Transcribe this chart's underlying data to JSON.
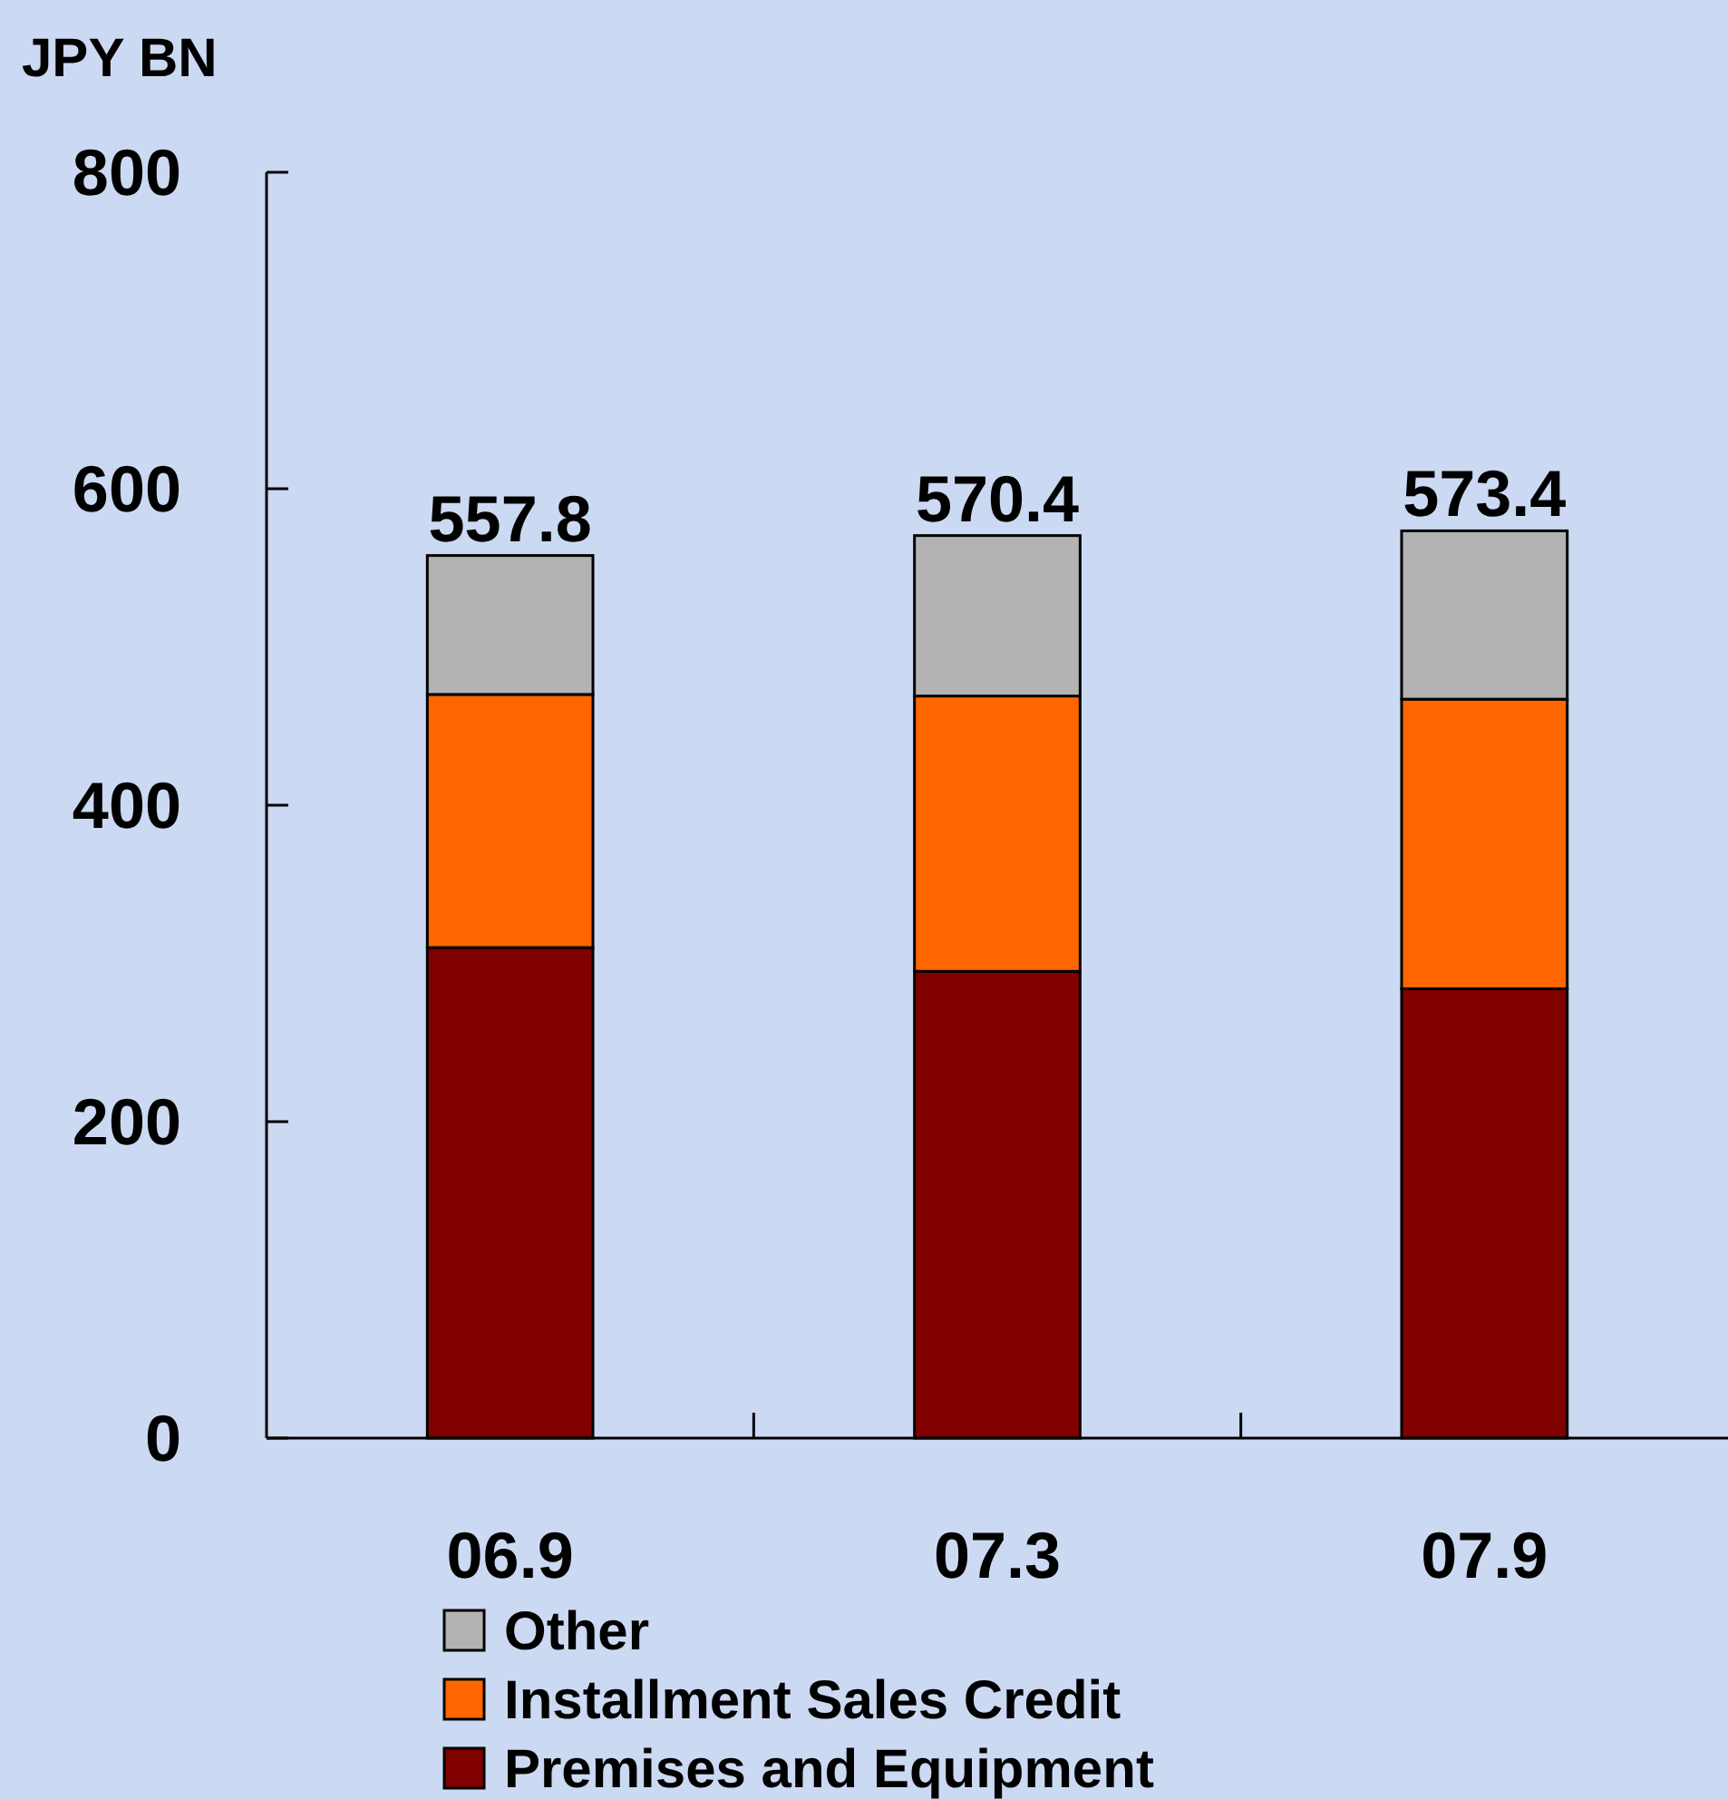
{
  "chart_data": {
    "type": "bar",
    "stacked": true,
    "ylabel": "JPY BN",
    "categories": [
      "06.9",
      "07.3",
      "07.9"
    ],
    "series": [
      {
        "name": "Premises and Equipment",
        "color": "#800000",
        "values": [
          310,
          295,
          284
        ]
      },
      {
        "name": "Installment Sales Credit",
        "color": "#ff6600",
        "values": [
          160,
          174,
          183
        ]
      },
      {
        "name": "Other",
        "color": "#b3b3b3",
        "values": [
          87.8,
          101.4,
          106.4
        ]
      }
    ],
    "totals": [
      "557.8",
      "570.4",
      "573.4"
    ],
    "ylim": [
      0,
      800
    ],
    "yticks": [
      0,
      200,
      400,
      600,
      800
    ],
    "grid": false,
    "legend": "bottom"
  }
}
